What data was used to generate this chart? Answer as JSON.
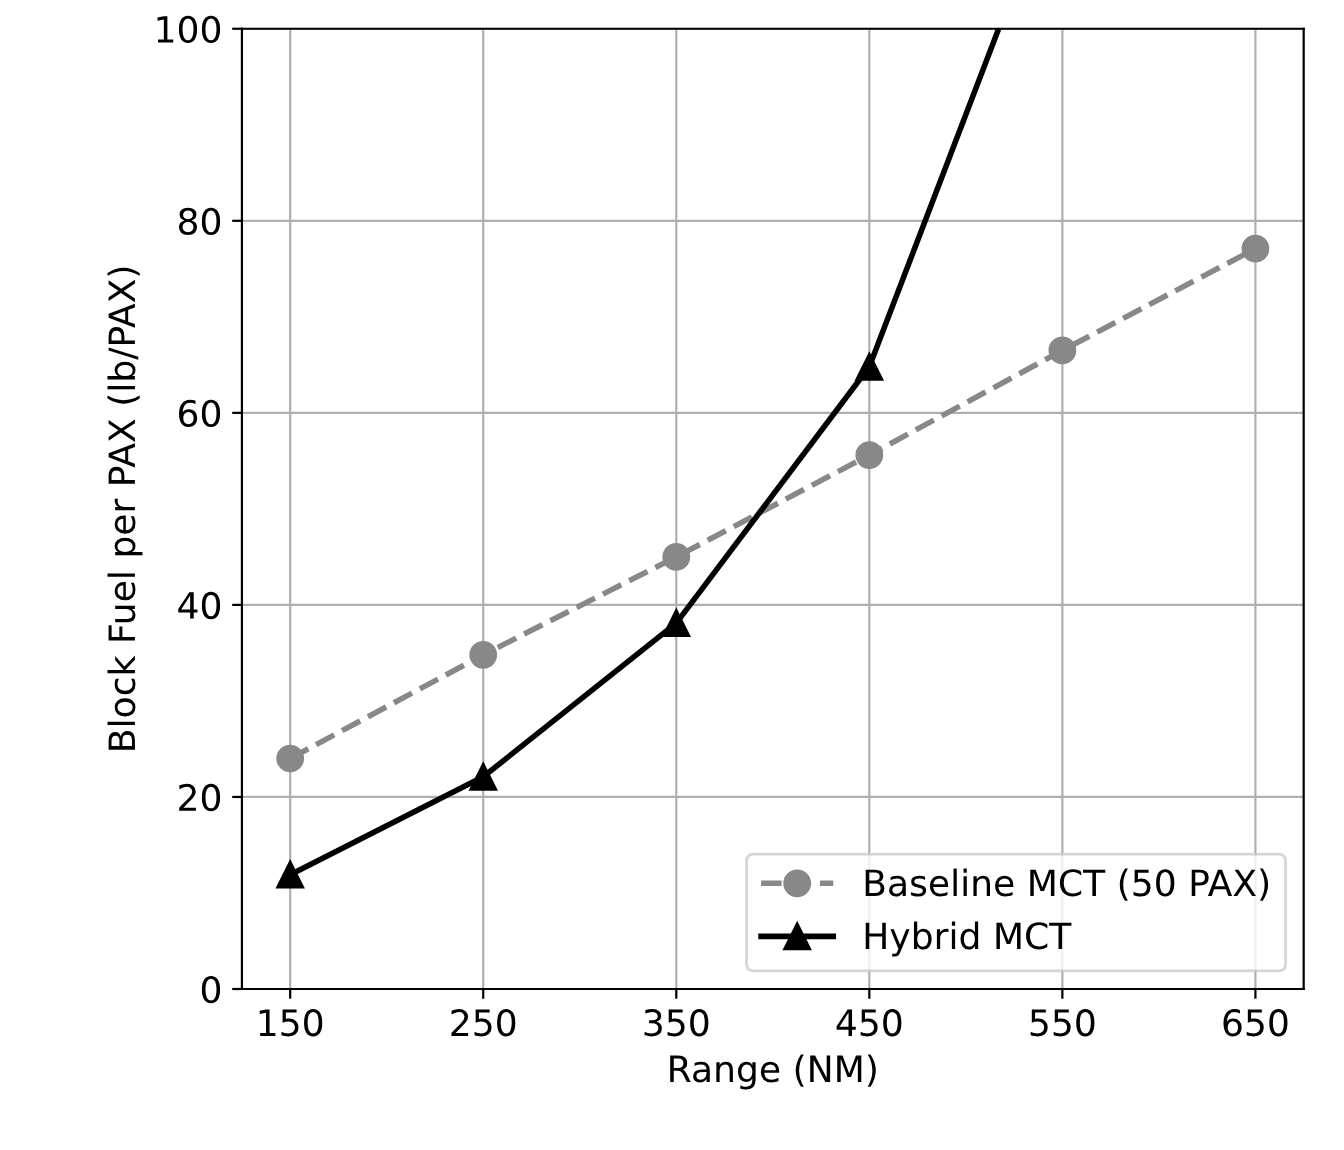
{
  "chart_data": {
    "type": "line",
    "xlabel": "Range (NM)",
    "ylabel": "Block Fuel per PAX (lb/PAX)",
    "x": [
      150,
      250,
      350,
      450,
      550,
      650
    ],
    "series": [
      {
        "name": "Baseline MCT (50 PAX)",
        "color": "#888888",
        "marker": "circle",
        "line_style": "dashed",
        "values": [
          24,
          34.8,
          45,
          55.6,
          66.5,
          77.1
        ]
      },
      {
        "name": "Hybrid MCT",
        "color": "#000000",
        "marker": "triangle",
        "line_style": "solid",
        "values": [
          11.9,
          22.1,
          38.1,
          64.8,
          null,
          null
        ]
      },
      {
        "color": "#000000",
        "marker": "none",
        "line_style": "solid",
        "x": [
          450,
          517
        ],
        "values": [
          64.8,
          100
        ]
      }
    ],
    "xlim": [
      125,
      675
    ],
    "ylim": [
      0,
      100
    ],
    "xticks": [
      150,
      250,
      350,
      450,
      550,
      650
    ],
    "yticks": [
      0,
      20,
      40,
      60,
      80,
      100
    ],
    "grid": true,
    "legend": "bottom right"
  }
}
